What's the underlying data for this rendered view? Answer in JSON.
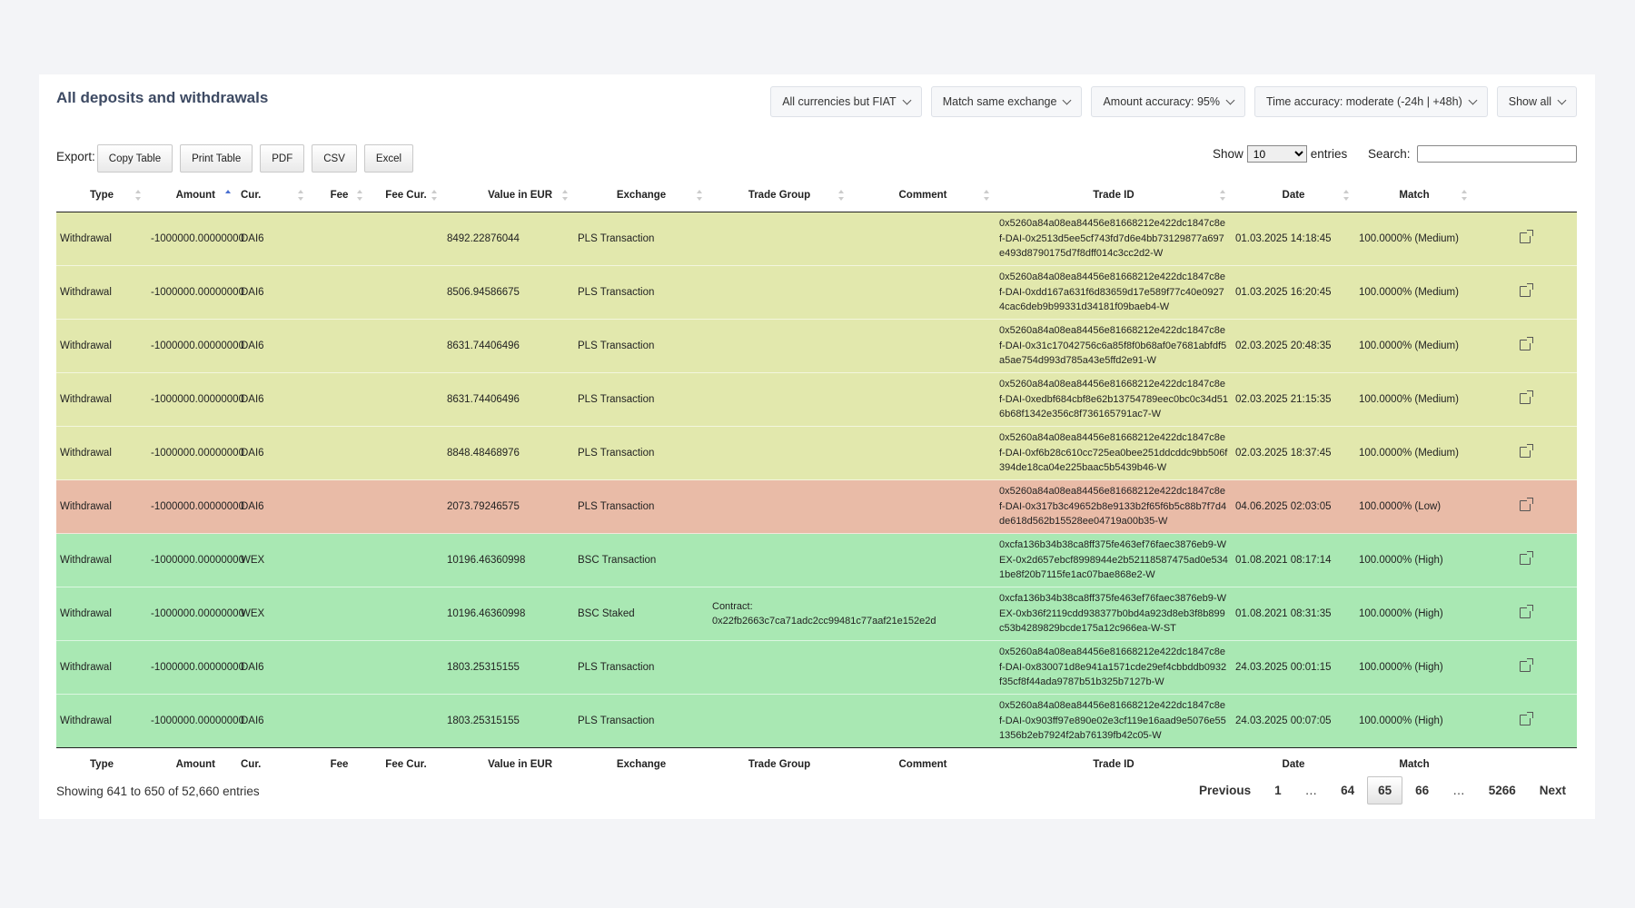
{
  "title": "All deposits and withdrawals",
  "filters": [
    "All currencies but FIAT",
    "Match same exchange",
    "Amount accuracy: 95%",
    "Time accuracy: moderate (-24h | +48h)",
    "Show all"
  ],
  "export": {
    "label": "Export:",
    "buttons": [
      "Copy Table",
      "Print Table",
      "PDF",
      "CSV",
      "Excel"
    ]
  },
  "length": {
    "show": "Show",
    "value": "10",
    "entries": "entries"
  },
  "search": {
    "label": "Search:",
    "value": ""
  },
  "columns": [
    "Type",
    "Amount",
    "Cur.",
    "Fee",
    "Fee Cur.",
    "Value in EUR",
    "Exchange",
    "Trade Group",
    "Comment",
    "Trade ID",
    "Date",
    "Match"
  ],
  "rows": [
    {
      "level": "medium",
      "type": "Withdrawal",
      "amount": "-1000000.00000000",
      "cur": "DAI6",
      "fee": "",
      "fee_cur": "",
      "value_eur": "8492.22876044",
      "exchange": "PLS Transaction",
      "trade_group": "",
      "comment": "",
      "trade_id": "0x5260a84a08ea84456e81668212e422dc1847c8ef-DAI-0x2513d5ee5cf743fd7d6e4bb73129877a697e493d8790175d7f8dff014c3cc2d2-W",
      "date": "01.03.2025 14:18:45",
      "match": "100.0000% (Medium)"
    },
    {
      "level": "medium",
      "type": "Withdrawal",
      "amount": "-1000000.00000000",
      "cur": "DAI6",
      "fee": "",
      "fee_cur": "",
      "value_eur": "8506.94586675",
      "exchange": "PLS Transaction",
      "trade_group": "",
      "comment": "",
      "trade_id": "0x5260a84a08ea84456e81668212e422dc1847c8ef-DAI-0xdd167a631f6d83659d17e589f77c40e09274cac6deb9b99331d34181f09baeb4-W",
      "date": "01.03.2025 16:20:45",
      "match": "100.0000% (Medium)"
    },
    {
      "level": "medium",
      "type": "Withdrawal",
      "amount": "-1000000.00000000",
      "cur": "DAI6",
      "fee": "",
      "fee_cur": "",
      "value_eur": "8631.74406496",
      "exchange": "PLS Transaction",
      "trade_group": "",
      "comment": "",
      "trade_id": "0x5260a84a08ea84456e81668212e422dc1847c8ef-DAI-0x31c17042756c6a85f8f0b68af0e7681abfdf5a5ae754d993d785a43e5ffd2e91-W",
      "date": "02.03.2025 20:48:35",
      "match": "100.0000% (Medium)"
    },
    {
      "level": "medium",
      "type": "Withdrawal",
      "amount": "-1000000.00000000",
      "cur": "DAI6",
      "fee": "",
      "fee_cur": "",
      "value_eur": "8631.74406496",
      "exchange": "PLS Transaction",
      "trade_group": "",
      "comment": "",
      "trade_id": "0x5260a84a08ea84456e81668212e422dc1847c8ef-DAI-0xedbf684cbf8e62b13754789eec0bc0c34d516b68f1342e356c8f736165791ac7-W",
      "date": "02.03.2025 21:15:35",
      "match": "100.0000% (Medium)"
    },
    {
      "level": "medium",
      "type": "Withdrawal",
      "amount": "-1000000.00000000",
      "cur": "DAI6",
      "fee": "",
      "fee_cur": "",
      "value_eur": "8848.48468976",
      "exchange": "PLS Transaction",
      "trade_group": "",
      "comment": "",
      "trade_id": "0x5260a84a08ea84456e81668212e422dc1847c8ef-DAI-0xf6b28c610cc725ea0bee251ddcddc9bb506f394de18ca04e225baac5b5439b46-W",
      "date": "02.03.2025 18:37:45",
      "match": "100.0000% (Medium)"
    },
    {
      "level": "low",
      "type": "Withdrawal",
      "amount": "-1000000.00000000",
      "cur": "DAI6",
      "fee": "",
      "fee_cur": "",
      "value_eur": "2073.79246575",
      "exchange": "PLS Transaction",
      "trade_group": "",
      "comment": "",
      "trade_id": "0x5260a84a08ea84456e81668212e422dc1847c8ef-DAI-0x317b3c49652b8e9133b2f65f6b5c88b7f7d4de618d562b15528ee04719a00b35-W",
      "date": "04.06.2025 02:03:05",
      "match": "100.0000% (Low)"
    },
    {
      "level": "high",
      "type": "Withdrawal",
      "amount": "-1000000.00000000",
      "cur": "WEX",
      "fee": "",
      "fee_cur": "",
      "value_eur": "10196.46360998",
      "exchange": "BSC Transaction",
      "trade_group": "",
      "comment": "",
      "trade_id": "0xcfa136b34b38ca8ff375fe463ef76faec3876eb9-WEX-0x2d657ebcf8998944e2b52118587475ad0e5341be8f20b7115fe1ac07bae868e2-W",
      "date": "01.08.2021 08:17:14",
      "match": "100.0000% (High)"
    },
    {
      "level": "high",
      "type": "Withdrawal",
      "amount": "-1000000.00000000",
      "cur": "WEX",
      "fee": "",
      "fee_cur": "",
      "value_eur": "10196.46360998",
      "exchange": "BSC Staked",
      "trade_group": "Contract: 0x22fb2663c7ca71adc2cc99481c77aaf21e152e2d",
      "comment": "",
      "trade_id": "0xcfa136b34b38ca8ff375fe463ef76faec3876eb9-WEX-0xb36f2119cdd938377b0bd4a923d8eb3f8b899c53b4289829bcde175a12c966ea-W-ST",
      "date": "01.08.2021 08:31:35",
      "match": "100.0000% (High)"
    },
    {
      "level": "high",
      "type": "Withdrawal",
      "amount": "-1000000.00000000",
      "cur": "DAI6",
      "fee": "",
      "fee_cur": "",
      "value_eur": "1803.25315155",
      "exchange": "PLS Transaction",
      "trade_group": "",
      "comment": "",
      "trade_id": "0x5260a84a08ea84456e81668212e422dc1847c8ef-DAI-0x830071d8e941a1571cde29ef4cbbddb0932f35cf8f44ada9787b51b325b7127b-W",
      "date": "24.03.2025 00:01:15",
      "match": "100.0000% (High)"
    },
    {
      "level": "high",
      "type": "Withdrawal",
      "amount": "-1000000.00000000",
      "cur": "DAI6",
      "fee": "",
      "fee_cur": "",
      "value_eur": "1803.25315155",
      "exchange": "PLS Transaction",
      "trade_group": "",
      "comment": "",
      "trade_id": "0x5260a84a08ea84456e81668212e422dc1847c8ef-DAI-0x903ff97e890e02e3cf119e16aad9e5076e551356b2eb7924f2ab76139fb42c05-W",
      "date": "24.03.2025 00:07:05",
      "match": "100.0000% (High)"
    }
  ],
  "info": "Showing 641 to 650 of 52,660 entries",
  "pagination": {
    "previous": "Previous",
    "next": "Next",
    "items": [
      "1",
      "…",
      "64",
      "65",
      "66",
      "…",
      "5266"
    ],
    "current": "65"
  },
  "colors": {
    "medium_row": "#e2e8ad",
    "low_row": "#e9bba7",
    "high_row": "#a9e8b3",
    "sort_active": "#4a6fd1"
  },
  "icons": {
    "row_action": "external-link-icon",
    "filter": "chevron-down-icon"
  }
}
